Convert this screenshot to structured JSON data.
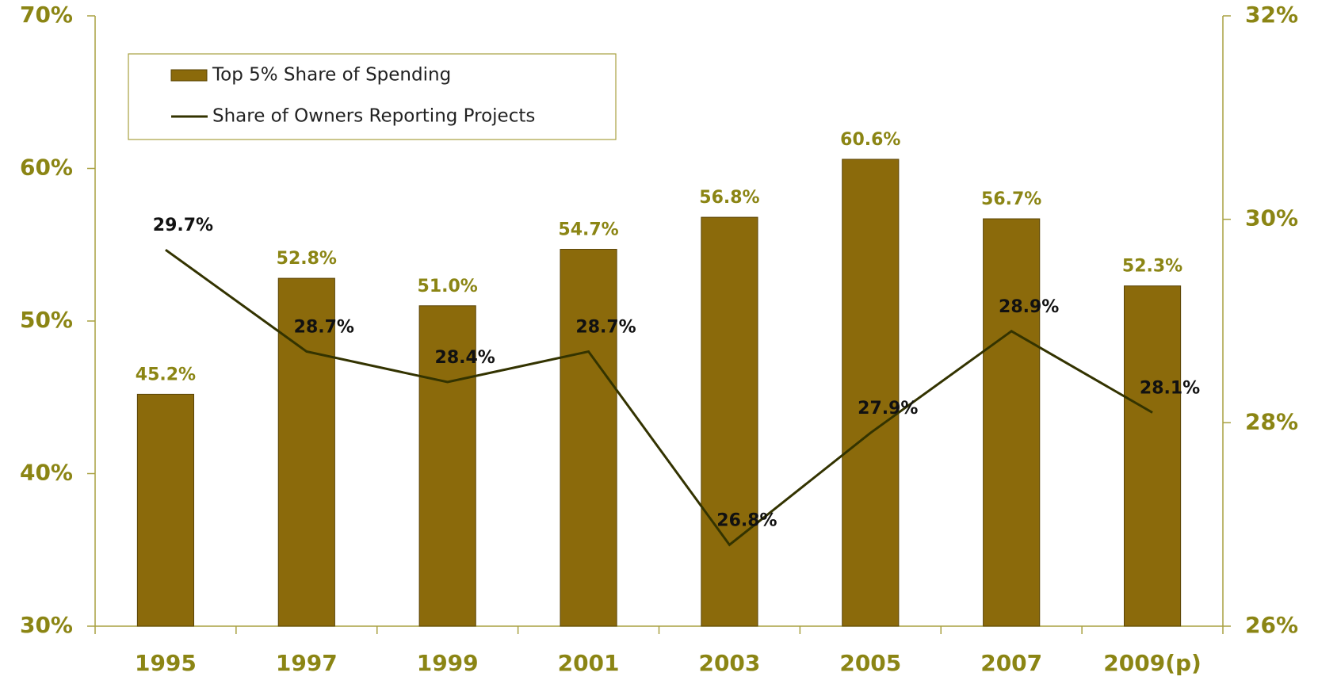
{
  "chart_data": {
    "type": "bar",
    "categories": [
      "1995",
      "1997",
      "1999",
      "2001",
      "2003",
      "2005",
      "2007",
      "2009(p)"
    ],
    "series": [
      {
        "name": "Top 5% Share of Spending",
        "type": "bar",
        "color": "#8b6a0b",
        "values": [
          45.2,
          52.8,
          51.0,
          54.7,
          56.8,
          60.6,
          56.7,
          52.3
        ],
        "value_labels": [
          "45.2%",
          "52.8%",
          "51.0%",
          "54.7%",
          "56.8%",
          "60.6%",
          "56.7%",
          "52.3%"
        ]
      },
      {
        "name": "Share of Owners Reporting Projects",
        "type": "line",
        "axis": "y2",
        "color": "#333300",
        "values": [
          29.7,
          28.7,
          28.4,
          28.7,
          26.8,
          27.9,
          28.9,
          28.1
        ],
        "value_labels": [
          "29.7%",
          "28.7%",
          "28.4%",
          "28.7%",
          "26.8%",
          "27.9%",
          "28.9%",
          "28.1%"
        ]
      }
    ],
    "ylim": [
      30,
      70
    ],
    "yticks": [
      {
        "value": 30,
        "label": "30%"
      },
      {
        "value": 40,
        "label": "40%"
      },
      {
        "value": 50,
        "label": "50%"
      },
      {
        "value": 60,
        "label": "60%"
      },
      {
        "value": 70,
        "label": "70%"
      }
    ],
    "y2lim": [
      26,
      32
    ],
    "y2ticks": [
      {
        "value": 26,
        "label": "26%"
      },
      {
        "value": 28,
        "label": "28%"
      },
      {
        "value": 30,
        "label": "30%"
      },
      {
        "value": 32,
        "label": "32%"
      }
    ],
    "legend": "top-left",
    "grid": false
  }
}
